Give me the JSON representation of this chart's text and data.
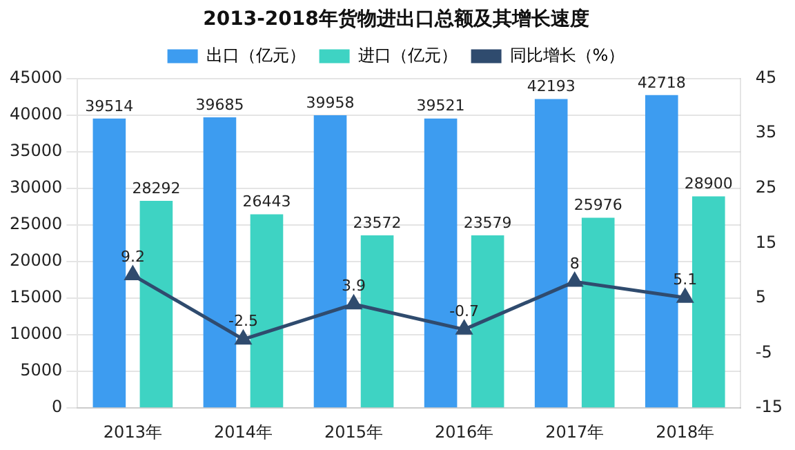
{
  "chart_data": {
    "type": "bar",
    "title": "2013-2018年货物进出口总额及其增长速度",
    "categories": [
      "2013年",
      "2014年",
      "2015年",
      "2016年",
      "2017年",
      "2018年"
    ],
    "series": [
      {
        "name": "出口（亿元）",
        "color": "#3d9cf0",
        "values": [
          39514,
          39685,
          39958,
          39521,
          42193,
          42718
        ]
      },
      {
        "name": "进口（亿元）",
        "color": "#3ed3c3",
        "values": [
          28292,
          26443,
          23572,
          23579,
          25976,
          28900
        ]
      },
      {
        "name": "同比增长（%）",
        "type": "line",
        "axis": "y2",
        "color": "#2f4b6e",
        "values": [
          9.2,
          -2.5,
          3.9,
          -0.7,
          8,
          5.1
        ]
      }
    ],
    "ylim": [
      0,
      45000
    ],
    "yticks": [
      0,
      5000,
      10000,
      15000,
      20000,
      25000,
      30000,
      35000,
      40000,
      45000
    ],
    "y2lim": [
      -15,
      45
    ],
    "y2ticks": [
      -15,
      -5,
      5,
      15,
      25,
      35,
      45
    ],
    "grid": "y",
    "legend": "top",
    "marker": "triangle",
    "data_labels": true
  }
}
